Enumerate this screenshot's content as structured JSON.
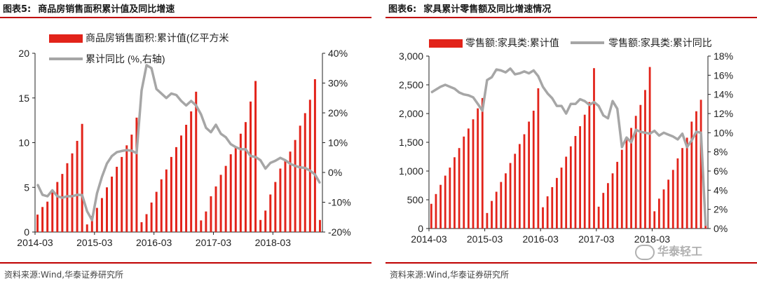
{
  "panels": [
    {
      "label": "图表5:",
      "title": "商品房销售面积累计值及同比增速",
      "source": "资料来源:Wind,华泰证券研究所"
    },
    {
      "label": "图表6:",
      "title": "家具累计零售额及同比增速情况",
      "source": "资料来源:Wind,华泰证券研究所"
    }
  ],
  "watermark": "华泰轻工",
  "colors": {
    "bar": "#e2231a",
    "line": "#a6a6a6",
    "rule": "#c00000"
  },
  "chart_data": [
    {
      "type": "bar",
      "title": "",
      "legend": {
        "placement": "top-left",
        "entries": [
          "商品房销售面积:累计值(亿平方米",
          "累计同比 (%,右轴)"
        ]
      },
      "x_ticks": [
        "2014-03",
        "2015-03",
        "2016-03",
        "2017-03",
        "2018-03"
      ],
      "y_left": {
        "min": 0,
        "max": 20,
        "ticks": [
          "0",
          "5",
          "10",
          "15",
          "20"
        ]
      },
      "y_right": {
        "min": -20,
        "max": 40,
        "ticks": [
          "-20%",
          "-10%",
          "0%",
          "10%",
          "20%",
          "30%",
          "40%"
        ]
      },
      "series": [
        {
          "name": "商品房销售面积:累计值(亿平方米",
          "type": "bar",
          "axis": "left",
          "values": [
            1.95,
            2.8,
            3.4,
            4.6,
            5.6,
            6.5,
            7.7,
            8.8,
            10.2,
            12.1,
            0.85,
            1.8,
            2.7,
            3.8,
            5.0,
            6.2,
            7.3,
            8.4,
            9.7,
            10.9,
            12.8,
            1.1,
            2.0,
            3.3,
            4.5,
            5.9,
            7.0,
            8.4,
            9.5,
            10.8,
            12.0,
            13.5,
            15.7,
            1.3,
            2.3,
            4.0,
            5.1,
            6.4,
            7.4,
            8.7,
            9.6,
            11.0,
            12.3,
            14.6,
            16.9,
            1.35,
            2.4,
            4.2,
            5.6,
            7.1,
            8.0,
            9.0,
            10.3,
            11.9,
            13.3,
            14.8,
            17.1,
            1.35
          ]
        },
        {
          "name": "累计同比 (%,右轴)",
          "type": "line",
          "axis": "right",
          "values": [
            -4,
            -7.5,
            -8,
            -6,
            -8,
            -8.5,
            -8,
            -8,
            -7.5,
            -7.6,
            -13,
            -16,
            -7,
            -1.5,
            3,
            5.5,
            6.8,
            7.2,
            7.5,
            7.3,
            6.5,
            27.5,
            36,
            35,
            28,
            26.5,
            25,
            26.5,
            26,
            24,
            22.5,
            24,
            22.5,
            19.5,
            15,
            13.5,
            16,
            13,
            11.8,
            9.5,
            8.5,
            7.8,
            7.8,
            5.5,
            5.2,
            4.1,
            1.3,
            3.2,
            3.9,
            4.9,
            4.1,
            2.9,
            2.2,
            1.7,
            1.5,
            0.6,
            -0.7,
            -3.6
          ]
        }
      ]
    },
    {
      "type": "bar",
      "title": "",
      "legend": {
        "placement": "top",
        "entries": [
          "零售额:家具类:累计值",
          "零售额:家具类:累计同比"
        ]
      },
      "x_ticks": [
        "2014-03",
        "2015-03",
        "2016-03",
        "2017-03",
        "2018-03"
      ],
      "y_left": {
        "min": 0,
        "max": 3000,
        "ticks": [
          "0",
          "500",
          "1,000",
          "1,500",
          "2,000",
          "2,500",
          "3,000"
        ]
      },
      "y_right": {
        "min": 0,
        "max": 18,
        "ticks": [
          "0%",
          "2%",
          "4%",
          "6%",
          "8%",
          "10%",
          "12%",
          "14%",
          "16%",
          "18%"
        ]
      },
      "series": [
        {
          "name": "零售额:家具类:累计值",
          "type": "bar",
          "axis": "left",
          "values": [
            430,
            600,
            760,
            920,
            1060,
            1240,
            1400,
            1600,
            1740,
            1900,
            2090,
            2270,
            270,
            480,
            640,
            810,
            960,
            1140,
            1300,
            1470,
            1640,
            1860,
            2050,
            2440,
            370,
            560,
            720,
            880,
            1060,
            1250,
            1430,
            1610,
            1780,
            1980,
            2200,
            2790,
            380,
            620,
            790,
            960,
            1160,
            1370,
            1560,
            1750,
            1960,
            2150,
            2410,
            2810,
            300,
            520,
            680,
            850,
            1020,
            1220,
            1400,
            1580,
            1860,
            2040,
            2240,
            60
          ]
        },
        {
          "name": "零售额:家具类:累计同比",
          "type": "line",
          "axis": "right",
          "values": [
            14.2,
            14.5,
            14.8,
            15.0,
            14.8,
            14.6,
            14.2,
            14.0,
            13.9,
            13.7,
            13.0,
            12.3,
            15.5,
            15.8,
            16.6,
            16.5,
            16.3,
            16.7,
            16.1,
            16.2,
            16.4,
            16.2,
            16.5,
            15.9,
            14.8,
            14.1,
            13.6,
            12.8,
            12.8,
            12.0,
            13.0,
            13.0,
            13.5,
            13.3,
            12.9,
            13.2,
            12.8,
            11.8,
            11.5,
            13.3,
            12.5,
            8.5,
            9.5,
            9.0,
            10.3,
            10.1,
            10.0,
            9.9,
            10.2,
            9.7,
            10.0,
            9.8,
            9.6,
            9.3,
            9.9,
            8.5,
            9.2,
            10.1,
            10.0,
            0.3
          ]
        }
      ]
    }
  ]
}
